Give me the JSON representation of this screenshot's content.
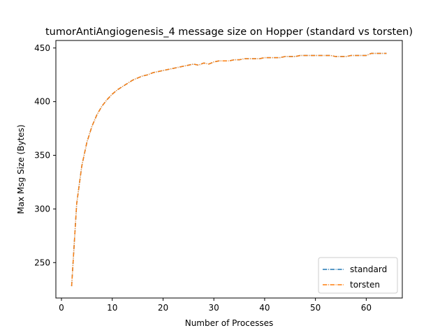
{
  "chart_data": {
    "type": "line",
    "title": "tumorAntiAngiogenesis_4 message size on Hopper (standard vs torsten)",
    "xlabel": "Number of Processes",
    "ylabel": "Max Msg Size (Bytes)",
    "xlim": [
      -1.1,
      67.1
    ],
    "ylim": [
      217,
      457
    ],
    "xticks": [
      0,
      10,
      20,
      30,
      40,
      50,
      60
    ],
    "yticks": [
      250,
      300,
      350,
      400,
      450
    ],
    "grid": false,
    "legend_position": "lower-right",
    "line_style": "dash-dot",
    "series": [
      {
        "name": "standard",
        "color": "#1f77b4",
        "x": [
          2,
          3,
          4,
          5,
          6,
          7,
          8,
          9,
          10,
          11,
          12,
          13,
          14,
          15,
          16,
          17,
          18,
          19,
          20,
          21,
          22,
          23,
          24,
          25,
          26,
          27,
          28,
          29,
          30,
          31,
          32,
          33,
          34,
          35,
          36,
          37,
          38,
          39,
          40,
          41,
          42,
          43,
          44,
          45,
          46,
          47,
          48,
          49,
          50,
          51,
          52,
          53,
          54,
          55,
          56,
          57,
          58,
          59,
          60,
          61,
          62,
          63,
          64
        ],
        "y": [
          228,
          305,
          340,
          362,
          377,
          388,
          396,
          402,
          407,
          411,
          414,
          417,
          420,
          422,
          424,
          425,
          427,
          428,
          429,
          430,
          431,
          432,
          433,
          434,
          435,
          434,
          436,
          435,
          437,
          438,
          438,
          438,
          439,
          439,
          440,
          440,
          440,
          440,
          441,
          441,
          441,
          441,
          442,
          442,
          442,
          443,
          443,
          443,
          443,
          443,
          443,
          443,
          442,
          442,
          442,
          443,
          443,
          443,
          443,
          445,
          445,
          445,
          445
        ]
      },
      {
        "name": "torsten",
        "color": "#ff7f0e",
        "x": [
          2,
          3,
          4,
          5,
          6,
          7,
          8,
          9,
          10,
          11,
          12,
          13,
          14,
          15,
          16,
          17,
          18,
          19,
          20,
          21,
          22,
          23,
          24,
          25,
          26,
          27,
          28,
          29,
          30,
          31,
          32,
          33,
          34,
          35,
          36,
          37,
          38,
          39,
          40,
          41,
          42,
          43,
          44,
          45,
          46,
          47,
          48,
          49,
          50,
          51,
          52,
          53,
          54,
          55,
          56,
          57,
          58,
          59,
          60,
          61,
          62,
          63,
          64
        ],
        "y": [
          228,
          305,
          340,
          362,
          377,
          388,
          396,
          402,
          407,
          411,
          414,
          417,
          420,
          422,
          424,
          425,
          427,
          428,
          429,
          430,
          431,
          432,
          433,
          434,
          435,
          434,
          436,
          435,
          437,
          438,
          438,
          438,
          439,
          439,
          440,
          440,
          440,
          440,
          441,
          441,
          441,
          441,
          442,
          442,
          442,
          443,
          443,
          443,
          443,
          443,
          443,
          443,
          442,
          442,
          442,
          443,
          443,
          443,
          443,
          445,
          445,
          445,
          445
        ]
      }
    ]
  }
}
